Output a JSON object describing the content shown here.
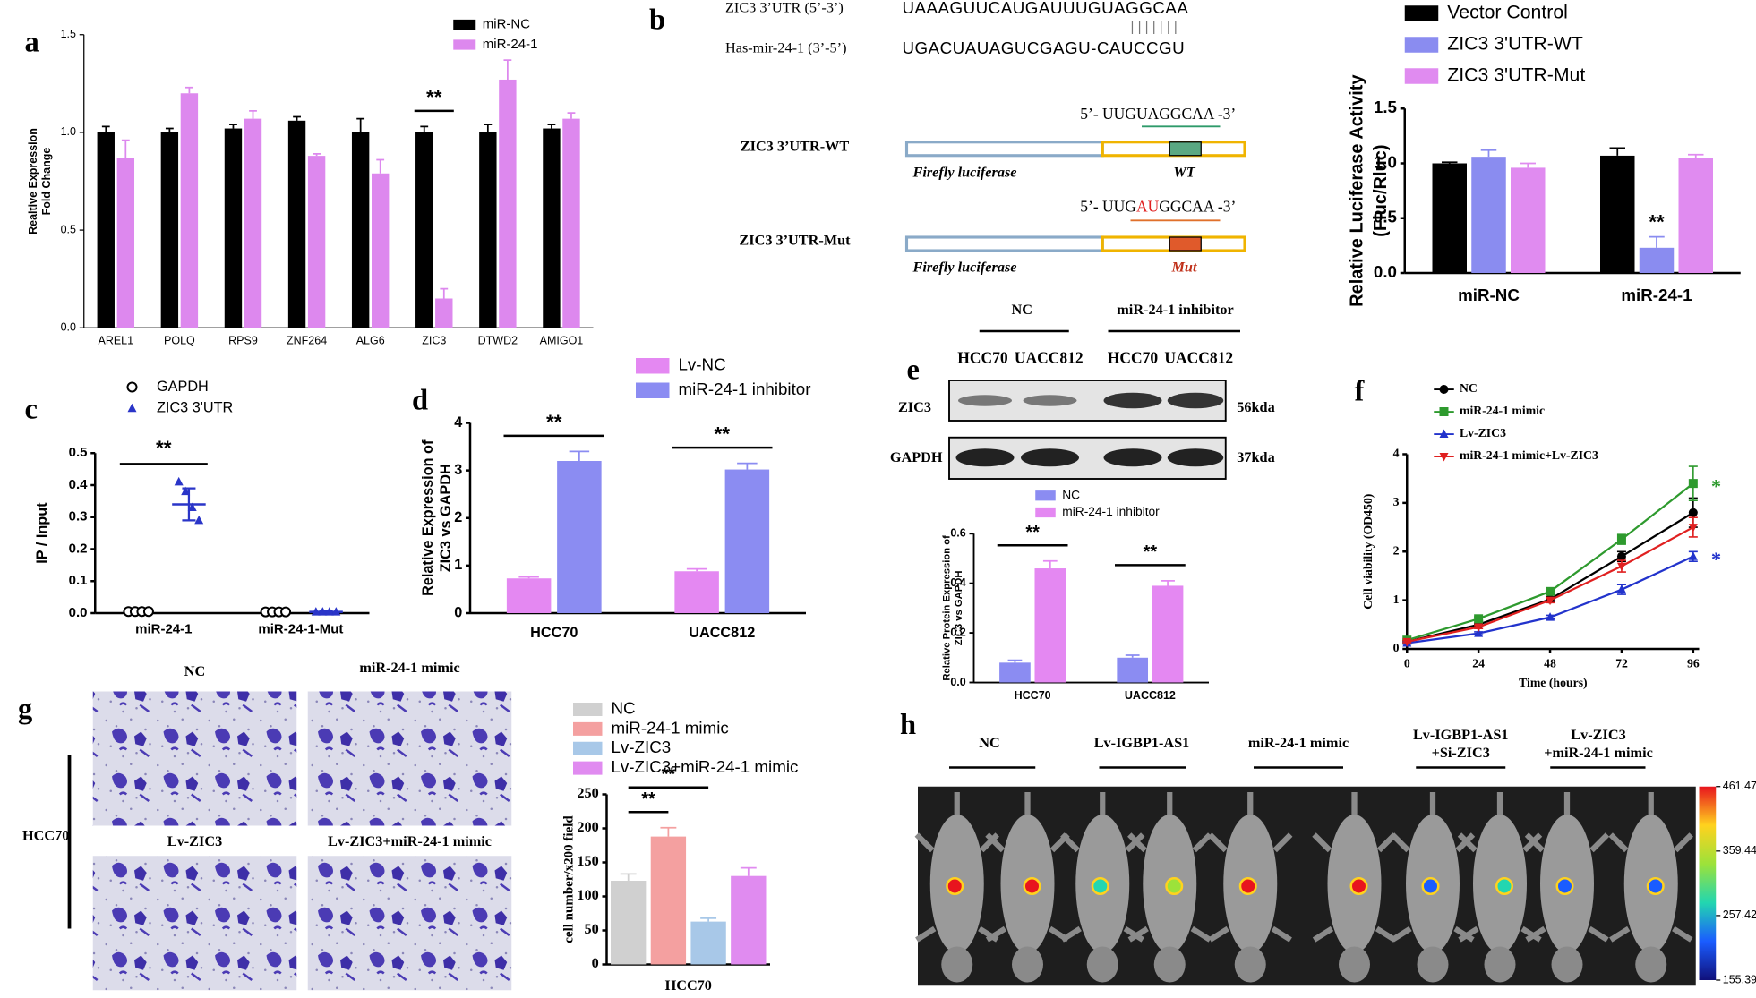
{
  "panel_labels": [
    "a",
    "b",
    "c",
    "d",
    "e",
    "f",
    "g",
    "h"
  ],
  "chart_data": [
    {
      "type": "bar",
      "ylabel": [
        "Realtive Expression",
        "Fold Change"
      ],
      "categories": [
        "AREL1",
        "POLQ",
        "RPS9",
        "ZNF264",
        "ALG6",
        "ZIC3",
        "DTWD2",
        "AMIGO1"
      ],
      "series": [
        {
          "name": "miR-NC",
          "color": "#000000",
          "values": [
            1.0,
            1.0,
            1.02,
            1.06,
            1.0,
            1.0,
            1.0,
            1.02
          ],
          "errors": [
            0.03,
            0.02,
            0.02,
            0.02,
            0.07,
            0.03,
            0.04,
            0.02
          ]
        },
        {
          "name": "miR-24-1",
          "color": "#dd88ee",
          "values": [
            0.87,
            1.2,
            1.07,
            0.88,
            0.79,
            0.15,
            1.27,
            1.07
          ],
          "errors": [
            0.09,
            0.03,
            0.04,
            0.01,
            0.07,
            0.05,
            0.1,
            0.03
          ]
        }
      ],
      "ylim": [
        0,
        1.5
      ],
      "yticks": [
        {
          "value": 0,
          "label": "0.0"
        },
        0.5,
        {
          "value": 1,
          "label": "1.0"
        },
        1.5
      ],
      "annotations": [
        {
          "text": "**",
          "category": 5
        }
      ]
    },
    {
      "type": "bar",
      "ylabel": [
        "Relative Luciferase Activity",
        "(Fluc/Rluc)"
      ],
      "categories": [
        "miR-NC",
        "miR-24-1"
      ],
      "series": [
        {
          "name": "Vector Control",
          "color": "#000000",
          "values": [
            1.0,
            1.07
          ],
          "errors": [
            0.01,
            0.07
          ]
        },
        {
          "name": "ZIC3 3'UTR-WT",
          "color": "#8a8cf0",
          "values": [
            1.06,
            0.23
          ],
          "errors": [
            0.06,
            0.1
          ]
        },
        {
          "name": "ZIC3 3'UTR-Mut",
          "color": "#e08bf0",
          "values": [
            0.96,
            1.05
          ],
          "errors": [
            0.04,
            0.03
          ]
        }
      ],
      "ylim": [
        0,
        1.5
      ],
      "yticks": [
        {
          "value": 0,
          "label": "0.0"
        },
        0.5,
        {
          "value": 1,
          "label": "1.0"
        },
        1.5
      ],
      "annotations": [
        {
          "text": "**",
          "category": 1,
          "series": 1
        }
      ]
    },
    {
      "type": "dot",
      "ylabel": "IP / Input",
      "categories": [
        "miR-24-1",
        "miR-24-1-Mut"
      ],
      "series": [
        {
          "name": "GAPDH",
          "color": "#000000",
          "marker": "circle-open",
          "values": [
            [
              0.005,
              0.005,
              0.005,
              0.005
            ],
            [
              0.004,
              0.004,
              0.004,
              0.004
            ]
          ]
        },
        {
          "name": "ZIC3 3'UTR",
          "color": "#2a35c8",
          "marker": "triangle",
          "values": [
            [
              0.41,
              0.38,
              0.33,
              0.29
            ],
            [
              0.004,
              0.004,
              0.004,
              0.004
            ]
          ],
          "means": [
            0.34,
            0.004
          ],
          "errors": [
            0.05,
            0.002
          ]
        }
      ],
      "ylim": [
        0,
        0.5
      ],
      "yticks": [
        {
          "value": 0,
          "label": "0.0"
        },
        0.1,
        0.2,
        0.3,
        0.4,
        0.5
      ],
      "annotations": [
        {
          "text": "**",
          "category": 0
        }
      ]
    },
    {
      "type": "bar",
      "ylabel": [
        "Relative Expression of",
        "ZIC3 vs GAPDH"
      ],
      "categories": [
        "HCC70",
        "UACC812"
      ],
      "series": [
        {
          "name": "Lv-NC",
          "color": "#e488f2",
          "values": [
            0.73,
            0.88
          ],
          "errors": [
            0.03,
            0.05
          ]
        },
        {
          "name": "miR-24-1 inhibitor",
          "color": "#8b8cf2",
          "values": [
            3.2,
            3.02
          ],
          "errors": [
            0.2,
            0.13
          ]
        }
      ],
      "ylim": [
        0,
        4
      ],
      "yticks": [
        0,
        1,
        2,
        3,
        4
      ],
      "annotations": [
        {
          "text": "**",
          "category": 0
        },
        {
          "text": "**",
          "category": 1
        }
      ]
    },
    {
      "type": "bar",
      "ylabel": [
        "Relative Protein Expression of",
        "ZIC3 vs GAPDH"
      ],
      "categories": [
        "HCC70",
        "UACC812"
      ],
      "series": [
        {
          "name": "NC",
          "color": "#8b8cf2",
          "values": [
            0.08,
            0.1
          ],
          "errors": [
            0.01,
            0.01
          ]
        },
        {
          "name": "miR-24-1 inhibitor",
          "color": "#e488f2",
          "values": [
            0.46,
            0.39
          ],
          "errors": [
            0.03,
            0.02
          ]
        }
      ],
      "ylim": [
        0,
        0.6
      ],
      "yticks": [
        {
          "value": 0,
          "label": "0.0"
        },
        0.2,
        0.4,
        0.6
      ],
      "annotations": [
        {
          "text": "**",
          "category": 0
        },
        {
          "text": "**",
          "category": 1
        }
      ]
    },
    {
      "type": "line",
      "ylabel": "Cell viability (OD450)",
      "xlabel": "Time (hours)",
      "x": [
        0,
        24,
        48,
        72,
        96
      ],
      "series": [
        {
          "name": "NC",
          "color": "#000000",
          "marker": "circle",
          "values": [
            0.15,
            0.5,
            1.02,
            1.9,
            2.8
          ],
          "errors": [
            0.02,
            0.03,
            0.05,
            0.1,
            0.3
          ]
        },
        {
          "name": "miR-24-1 mimic",
          "color": "#2e9a2e",
          "marker": "square",
          "values": [
            0.18,
            0.62,
            1.18,
            2.25,
            3.4
          ],
          "errors": [
            0.02,
            0.04,
            0.05,
            0.1,
            0.35
          ]
        },
        {
          "name": "Lv-ZIC3",
          "color": "#2233cc",
          "marker": "triangle",
          "values": [
            0.12,
            0.32,
            0.65,
            1.22,
            1.9
          ],
          "errors": [
            0.02,
            0.03,
            0.04,
            0.1,
            0.1
          ]
        },
        {
          "name": "miR-24-1 mimic+Lv-ZIC3",
          "color": "#e02020",
          "marker": "triangle-down",
          "values": [
            0.15,
            0.45,
            1.0,
            1.7,
            2.5
          ],
          "errors": [
            0.02,
            0.03,
            0.05,
            0.12,
            0.2
          ]
        }
      ],
      "xlim": [
        0,
        98
      ],
      "xticks": [
        0,
        24,
        48,
        72,
        96
      ],
      "ylim": [
        0,
        4
      ],
      "yticks": [
        0,
        1,
        2,
        3,
        4
      ],
      "annotations": [
        {
          "text": "*",
          "series": 1
        },
        {
          "text": "*",
          "series": 2
        }
      ]
    },
    {
      "type": "bar",
      "ylabel": "cell number/x200 field",
      "categories": [
        "HCC70"
      ],
      "series": [
        {
          "name": "NC",
          "color": "#d0d0d0",
          "values": [
            123
          ],
          "errors": [
            10
          ]
        },
        {
          "name": "miR-24-1 mimic",
          "color": "#f4a0a0",
          "values": [
            188
          ],
          "errors": [
            13
          ]
        },
        {
          "name": "Lv-ZIC3",
          "color": "#a8c8e8",
          "values": [
            63
          ],
          "errors": [
            5
          ]
        },
        {
          "name": "Lv-ZIC3+miR-24-1 mimic",
          "color": "#e08bf0",
          "values": [
            130
          ],
          "errors": [
            12
          ]
        }
      ],
      "ylim": [
        0,
        250
      ],
      "yticks": [
        0,
        50,
        100,
        150,
        200,
        250
      ],
      "annotations": [
        {
          "text": "**",
          "category": 0,
          "series": [
            0,
            1
          ]
        },
        {
          "text": "**",
          "category": 0,
          "series": [
            0,
            2
          ]
        }
      ]
    }
  ],
  "sequence_diagram": {
    "utr_label": "ZIC3 3’UTR (5’-3’)",
    "utr_seq": "UAAAGUUCAUGAUUUGUAGGCAA",
    "pairing": "| | | | | | |",
    "mir_label": "Has-mir-24-1 (3’-5’)",
    "mir_seq": "UGACUAUAGUCGAGU-CAUCCGU",
    "constructs": [
      {
        "name": "ZIC3 3’UTR-WT",
        "seq": [
          "5’- UUGUAGGCAA -3’"
        ],
        "reporter": "Firefly luciferase",
        "site": "WT"
      },
      {
        "name": "ZIC3 3’UTR-Mut",
        "seq": [
          "5’- UUG",
          "AU",
          "GGCAA -3’"
        ],
        "reporter": "Firefly luciferase",
        "site": "Mut"
      }
    ]
  },
  "western_blot": {
    "groups": [
      "NC",
      "miR-24-1 inhibitor"
    ],
    "lanes": [
      "HCC70",
      "UACC812",
      "HCC70",
      "UACC812"
    ],
    "rows": [
      {
        "protein": "ZIC3",
        "size": "56kda"
      },
      {
        "protein": "GAPDH",
        "size": "37kda"
      }
    ]
  },
  "images": {
    "g": {
      "labels": [
        "NC",
        "miR-24-1 mimic",
        "Lv-ZIC3",
        "Lv-ZIC3+miR-24-1 mimic"
      ],
      "side_label": "HCC70"
    },
    "h": {
      "groups": [
        [
          "NC"
        ],
        [
          "Lv-IGBP1-AS1"
        ],
        [
          "miR-24-1 mimic"
        ],
        [
          "Lv-IGBP1-AS1",
          "+Si-ZIC3"
        ],
        [
          "Lv-ZIC3",
          "+miR-24-1 mimic"
        ]
      ],
      "colorbar": {
        "lim": [
          155.39,
          461.47
        ],
        "ticks": [
          461.47,
          359.44,
          257.42,
          155.39
        ]
      }
    }
  }
}
